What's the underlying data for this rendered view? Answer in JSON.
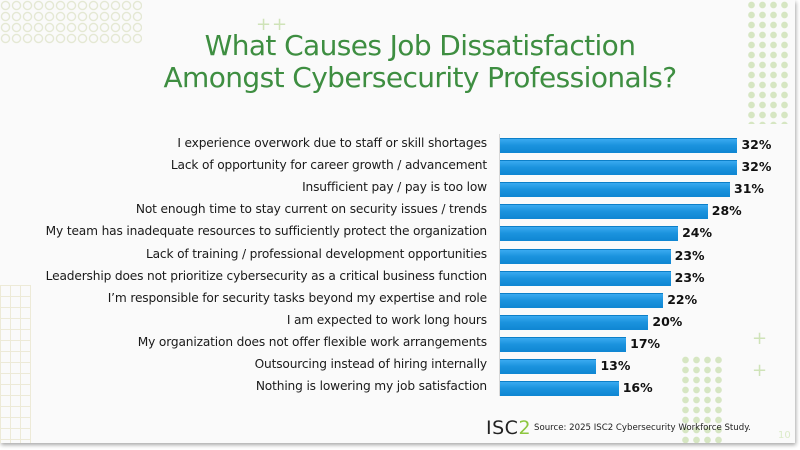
{
  "slide": {
    "title_line1": "What Causes Job Dissatisfaction",
    "title_line2": "Amongst Cybersecurity Professionals?",
    "footer": {
      "logo_text": "ISC",
      "logo_accent": "2",
      "source": "Source: 2025 ISC2 Cybersecurity Workforce Study."
    },
    "slide_number": "10",
    "colors": {
      "title": "#3e8e41",
      "bar": "#1b93de",
      "logo_accent": "#8dc63f"
    }
  },
  "chart_data": {
    "type": "bar",
    "orientation": "horizontal",
    "title": "What Causes Job Dissatisfaction Amongst Cybersecurity Professionals?",
    "xlabel": "",
    "ylabel": "",
    "xlim": [
      0,
      35
    ],
    "grid": false,
    "legend": null,
    "value_format": "percent",
    "categories": [
      "I experience overwork due to staff or skill shortages",
      "Lack of opportunity for career growth / advancement",
      "Insufficient pay / pay is too low",
      "Not enough time to stay current on security issues / trends",
      "My team has inadequate resources to sufficiently protect the organization",
      "Lack of training / professional development opportunities",
      "Leadership does not prioritize cybersecurity as a critical business function",
      "I’m responsible for security tasks beyond my expertise and role",
      "I am expected to work long hours",
      "My organization does not offer flexible work arrangements",
      "Outsourcing instead of hiring internally",
      "Nothing is lowering my job satisfaction"
    ],
    "values": [
      32,
      32,
      31,
      28,
      24,
      23,
      23,
      22,
      20,
      17,
      13,
      16
    ],
    "value_labels": [
      "32%",
      "32%",
      "31%",
      "28%",
      "24%",
      "23%",
      "23%",
      "22%",
      "20%",
      "17%",
      "13%",
      "16%"
    ],
    "source": "Source: 2025 ISC2 Cybersecurity Workforce Study."
  }
}
